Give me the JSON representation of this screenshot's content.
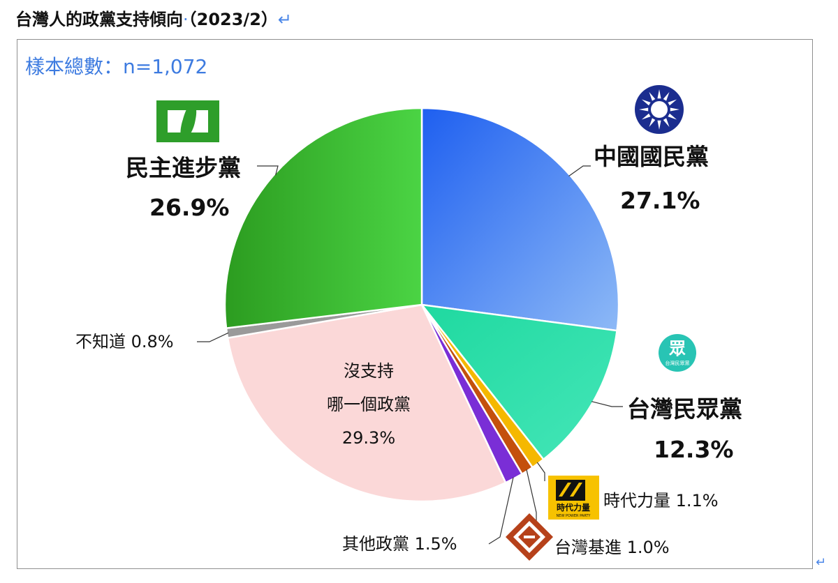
{
  "page": {
    "title": "台灣人的政黨支持傾向",
    "title_dot": "·",
    "title_date": "（2023/2）",
    "para_mark": "↵",
    "sample": "樣本總數：n=1,072"
  },
  "logos": {
    "kmt": "kmt-emblem-icon",
    "dpp": "dpp-flag-icon",
    "tpp": "tpp-logo-icon",
    "tpp_glyph": "眾",
    "tpp_small": "台灣民眾黨",
    "npp": "npp-logo-icon",
    "npp_text": "時代力量",
    "npp_sub": "NEW POWER PARTY",
    "tsp": "tsp-logo-icon"
  },
  "chart_data": {
    "type": "pie",
    "title": "台灣人的政黨支持傾向",
    "start": "12 o'clock, clockwise",
    "slices": [
      {
        "label": "中國國民黨",
        "value": 27.1,
        "value_label": "27.1%",
        "color": "#2d6ff0"
      },
      {
        "label": "台灣民眾黨",
        "value": 12.3,
        "value_label": "12.3%",
        "color": "#2ee0aa"
      },
      {
        "label": "時代力量",
        "value": 1.1,
        "value_label": "1.1%",
        "color": "#f5b800"
      },
      {
        "label": "台灣基進",
        "value": 1.0,
        "value_label": "1.0%",
        "color": "#c4500c"
      },
      {
        "label": "其他政黨",
        "value": 1.5,
        "value_label": "1.5%",
        "color": "#7a2ed6"
      },
      {
        "label_lines": [
          "沒支持",
          "哪一個政黨"
        ],
        "value": 29.3,
        "value_label": "29.3%",
        "color": "#fbd8d8"
      },
      {
        "label": "不知道",
        "value": 0.8,
        "value_label": "0.8%",
        "color": "#9a9a9a"
      },
      {
        "label": "民主進步黨",
        "value": 26.9,
        "value_label": "26.9%",
        "color": "#3cc43a"
      }
    ]
  }
}
